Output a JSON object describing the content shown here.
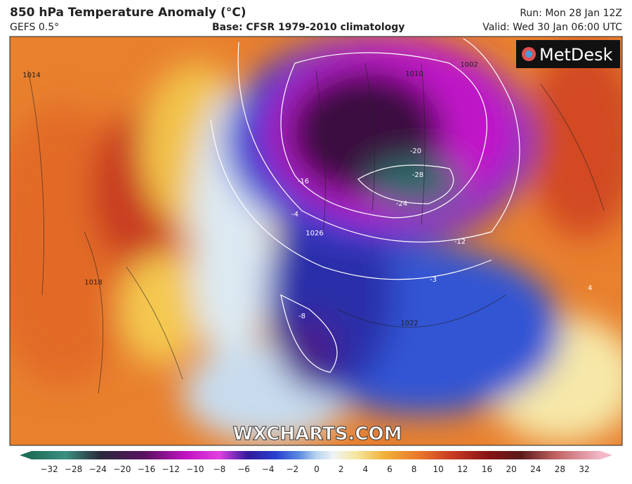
{
  "header": {
    "title": "850 hPa Temperature Anomaly (°C)",
    "model": "GEFS 0.5°",
    "base": "Base: CFSR 1979-2010 climatology",
    "run": "Run: Mon 28 Jan 12Z",
    "valid": "Valid: Wed 30 Jan 06:00 UTC"
  },
  "logo": "MetDesk",
  "watermark": "WXCHARTS.COM",
  "contour_labels": [
    "-28",
    "-24",
    "-20",
    "-16",
    "-12",
    "-8",
    "-4",
    "-3",
    "4",
    "1014",
    "1018",
    "1022",
    "1026",
    "1010",
    "1002"
  ],
  "colorbar": {
    "labels": [
      "−32",
      "−28",
      "−24",
      "−20",
      "−16",
      "−12",
      "−10",
      "−8",
      "−6",
      "−4",
      "−2",
      "0",
      "2",
      "4",
      "6",
      "8",
      "10",
      "12",
      "16",
      "20",
      "24",
      "28",
      "32"
    ]
  }
}
